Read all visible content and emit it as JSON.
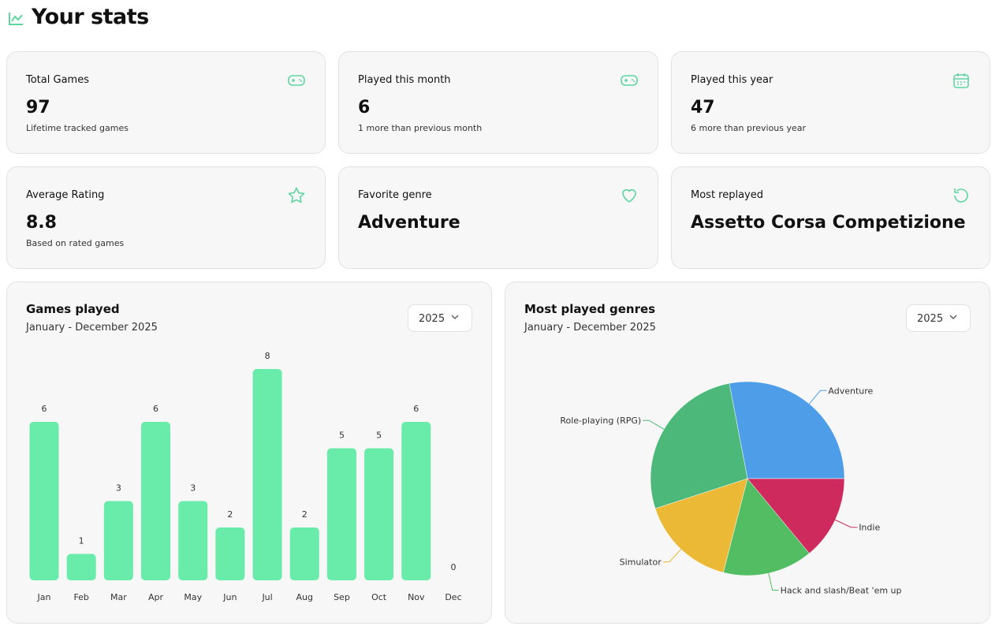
{
  "header": {
    "title": "Your stats"
  },
  "cards": [
    {
      "label": "Total Games",
      "value": 97,
      "note": "Lifetime tracked games"
    },
    {
      "label": "Played this month",
      "value": 6,
      "note": "1 more than previous month"
    },
    {
      "label": "Played this year",
      "value": 47,
      "note": "6 more than previous year"
    },
    {
      "label": "Average Rating",
      "value": 8.8,
      "note": "Based on rated games"
    },
    {
      "label": "Favorite genre",
      "value": "Adventure"
    },
    {
      "label": "Most replayed",
      "value": "Assetto Corsa Competizione"
    }
  ],
  "chart_data": [
    {
      "type": "bar",
      "title": "Games played",
      "subtitle": "January - December 2025",
      "selector": "2025",
      "categories": [
        "Jan",
        "Feb",
        "Mar",
        "Apr",
        "May",
        "Jun",
        "Jul",
        "Aug",
        "Sep",
        "Oct",
        "Nov",
        "Dec"
      ],
      "values": [
        6,
        1,
        3,
        6,
        3,
        2,
        8,
        2,
        5,
        5,
        6,
        0
      ],
      "color": "#69eca9",
      "ylim": [
        0,
        8
      ]
    },
    {
      "type": "pie",
      "title": "Most played genres",
      "subtitle": "January - December 2025",
      "selector": "2025",
      "categories": [
        "Adventure",
        "Role-playing (RPG)",
        "Simulator",
        "Hack and slash/Beat 'em up",
        "Indie"
      ],
      "values": [
        28,
        27,
        16,
        15,
        14
      ],
      "colors": [
        "#4e9de8",
        "#4cb87a",
        "#ebb935",
        "#52bd62",
        "#cf2a5e"
      ]
    }
  ]
}
